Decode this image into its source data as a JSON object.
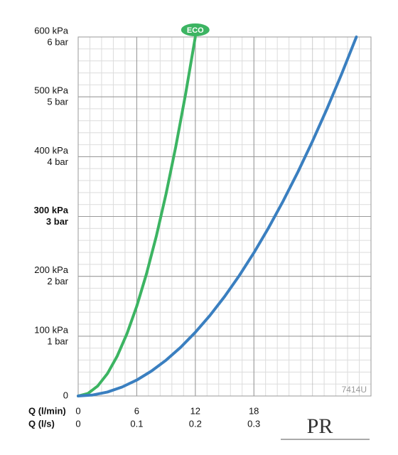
{
  "chart_data": {
    "type": "line",
    "xlabel": "Q (l/min)",
    "x2label": "Q (l/s)",
    "xlim": [
      0,
      30
    ],
    "ylim": [
      0,
      600
    ],
    "xticks": [
      0,
      6,
      12,
      18
    ],
    "x2ticks": [
      0,
      {
        "value": 6,
        "label": "0.1"
      },
      {
        "value": 12,
        "label": "0.2"
      },
      {
        "value": 18,
        "label": "0.3"
      }
    ],
    "yticks": [
      0,
      {
        "value": 100,
        "label": "100 kPa"
      },
      {
        "value": 200,
        "label": "200 kPa"
      },
      {
        "value": 300,
        "label": "300 kPa"
      },
      {
        "value": 400,
        "label": "400 kPa"
      },
      {
        "value": 500,
        "label": "500 kPa"
      },
      {
        "value": 600,
        "label": "600 kPa"
      }
    ],
    "ybarticks": [
      {
        "value": 100,
        "label": "1 bar"
      },
      {
        "value": 200,
        "label": "2 bar"
      },
      {
        "value": 300,
        "label": "3 bar"
      },
      {
        "value": 400,
        "label": "4 bar"
      },
      {
        "value": 500,
        "label": "5 bar"
      },
      {
        "value": 600,
        "label": "6 bar"
      }
    ],
    "emphasized_ytick": 300,
    "grid": true,
    "series": [
      {
        "name": "ECO",
        "color": "#3cb462",
        "x": [
          0,
          1,
          2,
          3,
          4,
          5,
          6,
          7,
          8,
          9,
          10,
          11,
          12
        ],
        "values": [
          0,
          4.2,
          16.7,
          37.5,
          66.7,
          104.2,
          150,
          204.2,
          266.7,
          337.5,
          416.7,
          504.2,
          600
        ]
      },
      {
        "color": "#3a7fc0",
        "x": [
          0,
          1.5,
          3,
          4.5,
          6,
          7.5,
          9,
          10.5,
          12,
          13.5,
          15,
          16.5,
          18,
          19.5,
          21,
          22.5,
          24,
          25.5,
          27,
          28.5
        ],
        "values": [
          0,
          1.7,
          6.6,
          15,
          26.6,
          41.6,
          59.8,
          81.4,
          106.4,
          134.6,
          166.2,
          201.1,
          239.3,
          280.9,
          325.8,
          374,
          425.5,
          480.3,
          538.5,
          600
        ]
      }
    ],
    "watermark": "7414U",
    "logo": "PR"
  }
}
